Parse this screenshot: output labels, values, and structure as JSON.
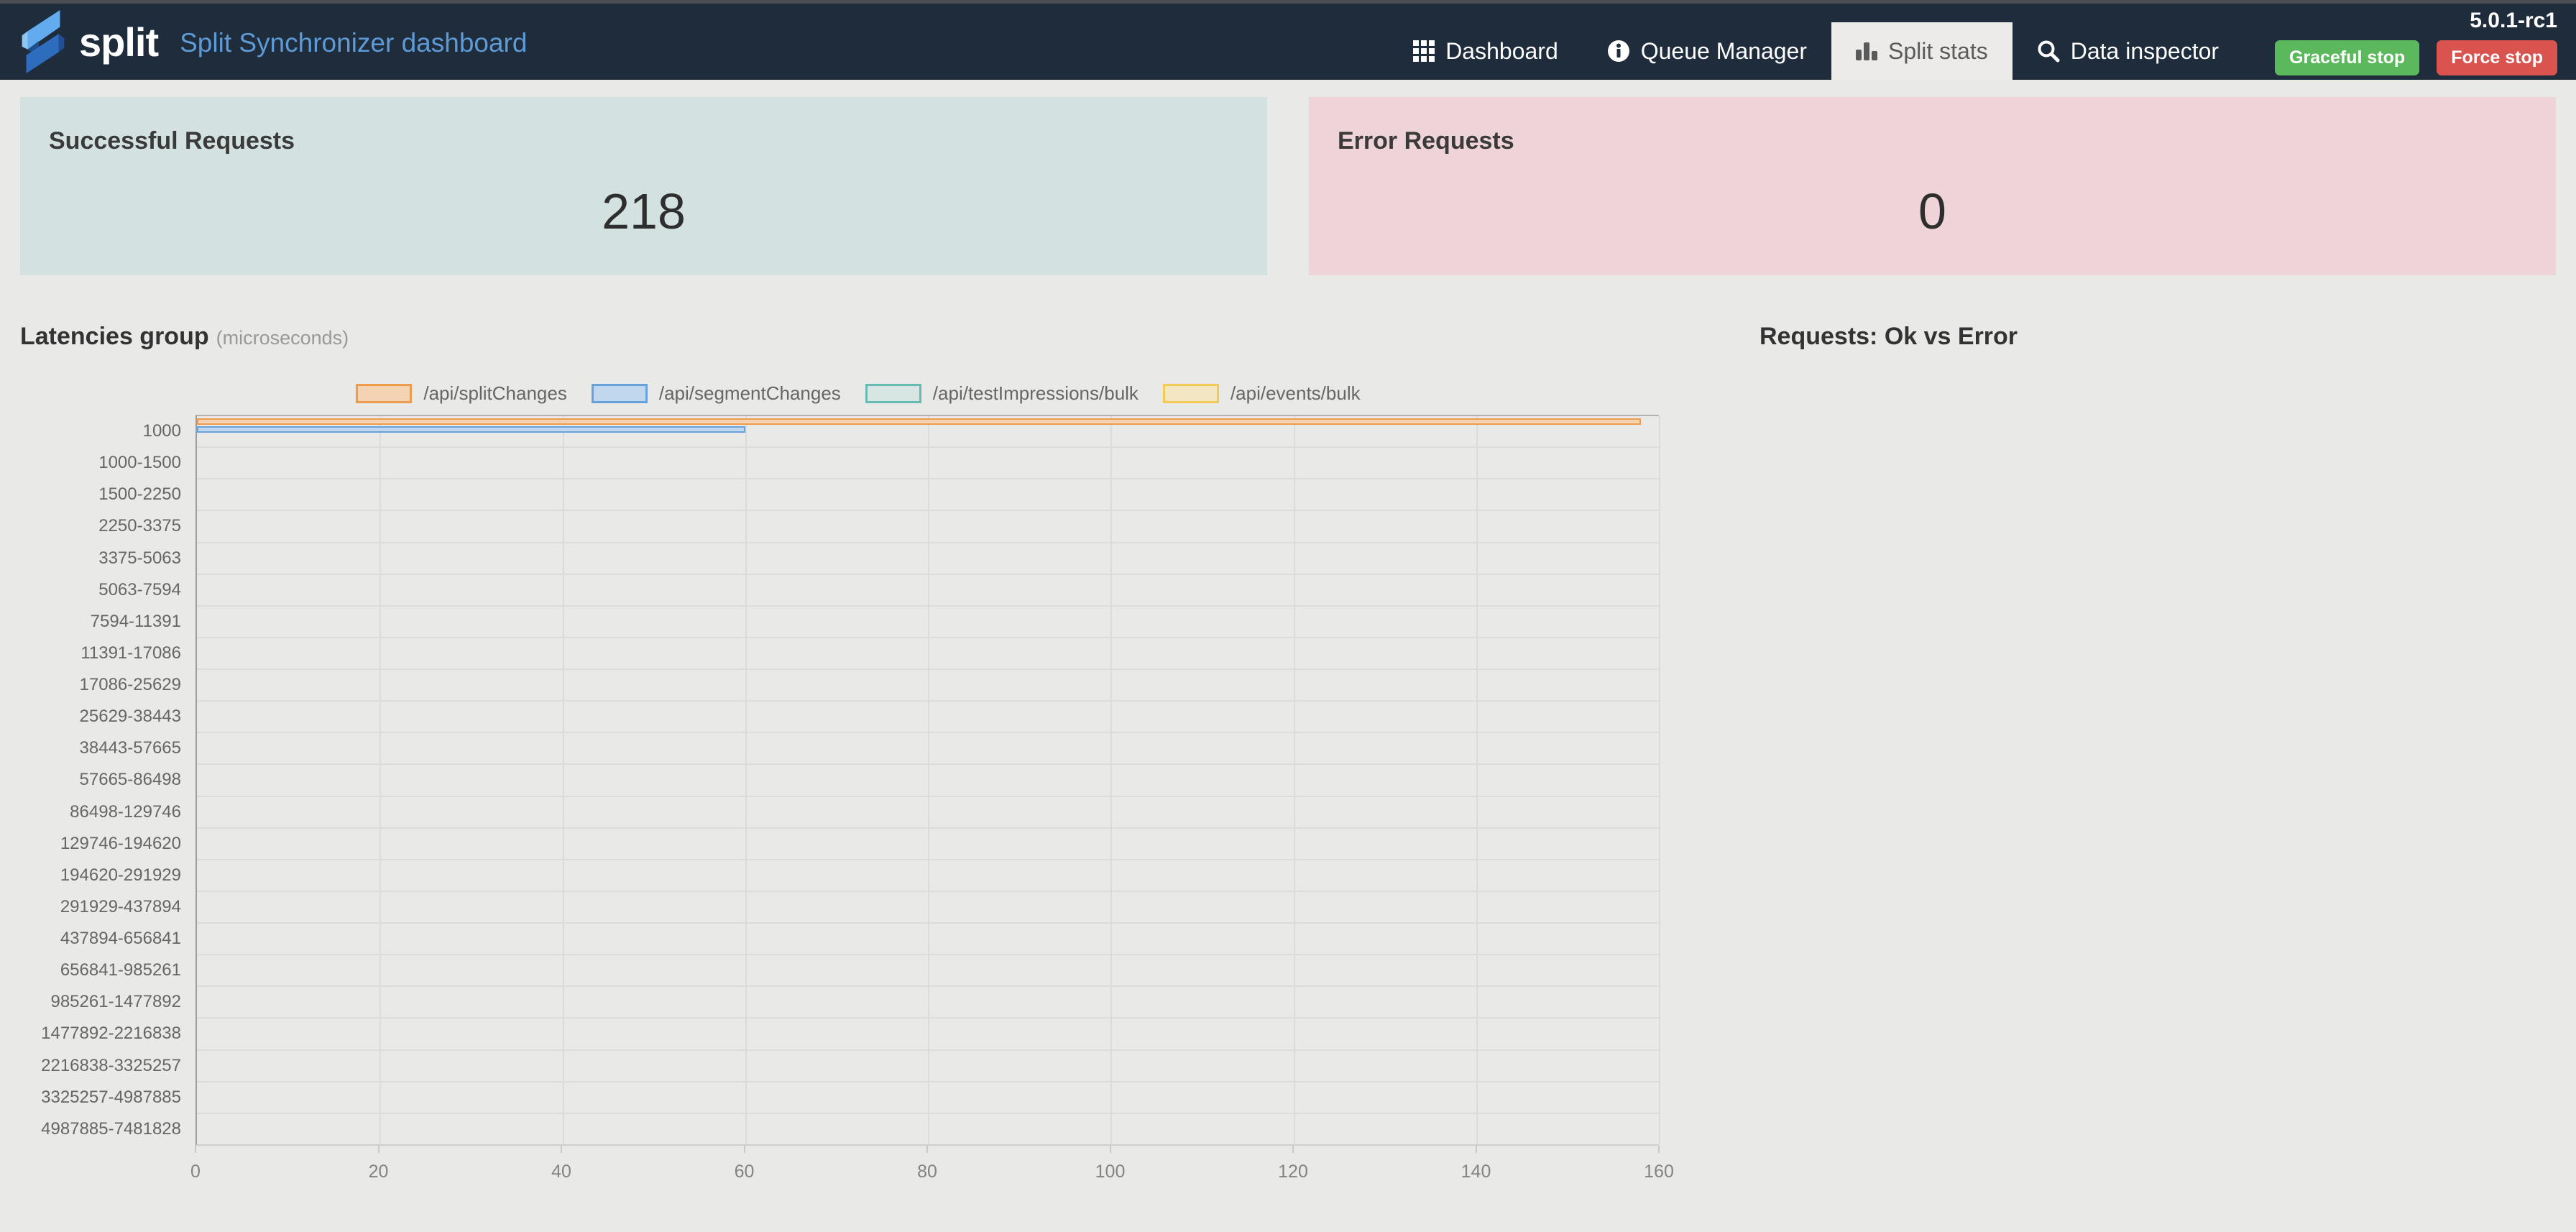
{
  "navbar": {
    "brand": "split",
    "title": "Split Synchronizer dashboard",
    "items": [
      {
        "label": "Dashboard",
        "icon": "grid-icon",
        "active": false
      },
      {
        "label": "Queue Manager",
        "icon": "info-icon",
        "active": false
      },
      {
        "label": "Split stats",
        "icon": "bar-chart-icon",
        "active": true
      },
      {
        "label": "Data inspector",
        "icon": "search-icon",
        "active": false
      }
    ],
    "version": "5.0.1-rc1",
    "graceful_stop_label": "Graceful stop",
    "force_stop_label": "Force stop",
    "colors": {
      "bar_background": "#1E2C3C",
      "title_text": "#5E9BD6",
      "graceful_stop": "#5CB85C",
      "force_stop": "#D9534F"
    }
  },
  "cards": {
    "successful": {
      "title": "Successful Requests",
      "value": "218",
      "bg": "#D3E2E0"
    },
    "error": {
      "title": "Error Requests",
      "value": "0",
      "bg": "#EED3D9"
    }
  },
  "chart_data": [
    {
      "type": "bar",
      "orientation": "horizontal",
      "title": "Latencies group",
      "subtitle": "(microseconds)",
      "legend_position": "top",
      "grid": true,
      "xlim": [
        0,
        160
      ],
      "xticks": [
        0,
        20,
        40,
        60,
        80,
        100,
        120,
        140,
        160
      ],
      "categories": [
        "1000",
        "1000-1500",
        "1500-2250",
        "2250-3375",
        "3375-5063",
        "5063-7594",
        "7594-11391",
        "11391-17086",
        "17086-25629",
        "25629-38443",
        "38443-57665",
        "57665-86498",
        "86498-129746",
        "129746-194620",
        "194620-291929",
        "291929-437894",
        "437894-656841",
        "656841-985261",
        "985261-1477892",
        "1477892-2216838",
        "2216838-3325257",
        "3325257-4987885",
        "4987885-7481828"
      ],
      "series": [
        {
          "name": "/api/splitChanges",
          "border": "#EE9B4D",
          "fill": "#F3D3B1",
          "values": [
            158,
            0,
            0,
            0,
            0,
            0,
            0,
            0,
            0,
            0,
            0,
            0,
            0,
            0,
            0,
            0,
            0,
            0,
            0,
            0,
            0,
            0,
            0
          ]
        },
        {
          "name": "/api/segmentChanges",
          "border": "#68A2DA",
          "fill": "#C0D7EE",
          "values": [
            60,
            0,
            0,
            0,
            0,
            0,
            0,
            0,
            0,
            0,
            0,
            0,
            0,
            0,
            0,
            0,
            0,
            0,
            0,
            0,
            0,
            0,
            0
          ]
        },
        {
          "name": "/api/testImpressions/bulk",
          "border": "#66BBB3",
          "fill": "#D8E6E3",
          "values": [
            0,
            0,
            0,
            0,
            0,
            0,
            0,
            0,
            0,
            0,
            0,
            0,
            0,
            0,
            0,
            0,
            0,
            0,
            0,
            0,
            0,
            0,
            0
          ]
        },
        {
          "name": "/api/events/bulk",
          "border": "#F2CA55",
          "fill": "#F3E6C3",
          "values": [
            0,
            0,
            0,
            0,
            0,
            0,
            0,
            0,
            0,
            0,
            0,
            0,
            0,
            0,
            0,
            0,
            0,
            0,
            0,
            0,
            0,
            0,
            0
          ]
        }
      ]
    },
    {
      "type": "pie",
      "title": "Requests: Ok vs Error",
      "series": []
    }
  ]
}
